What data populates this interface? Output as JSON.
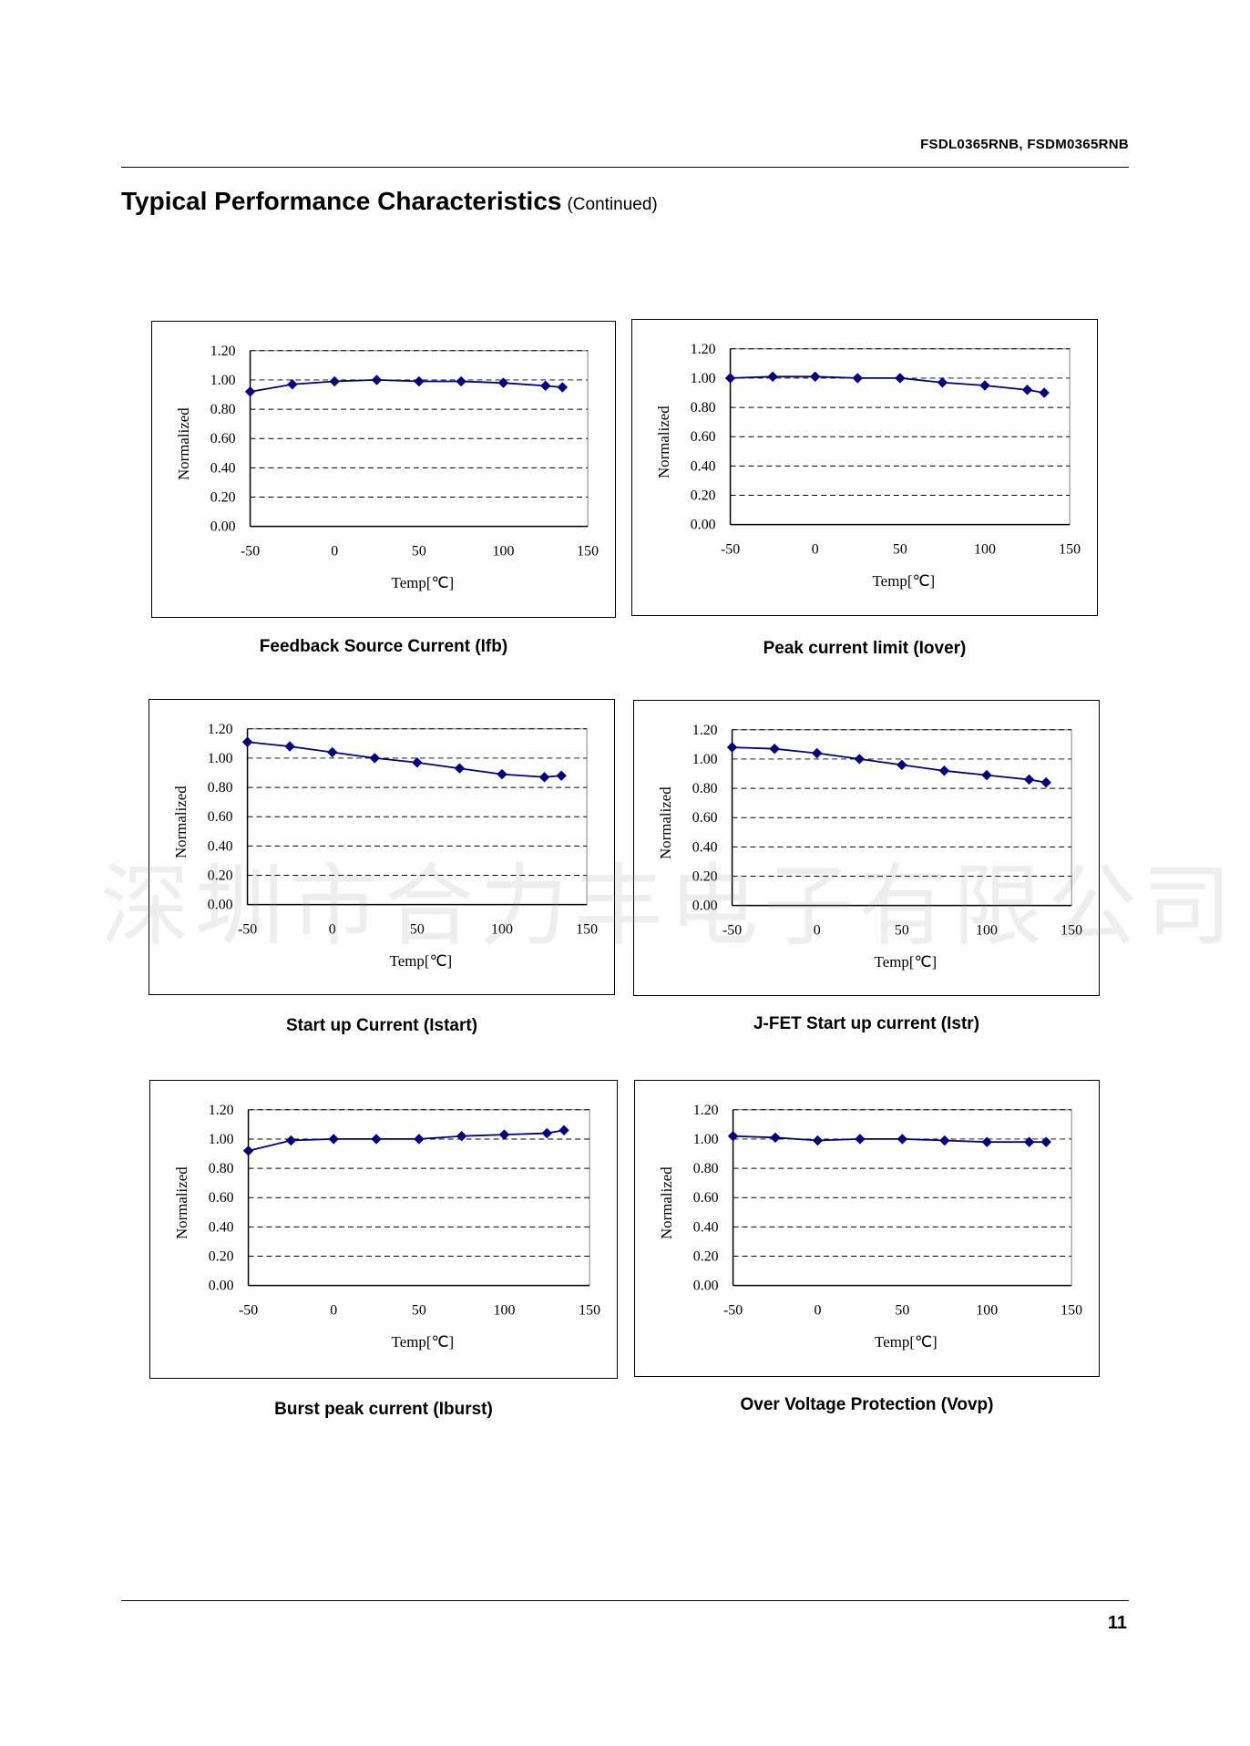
{
  "header": {
    "part_numbers": "FSDL0365RNB, FSDM0365RNB"
  },
  "title": {
    "main": "Typical Performance Characteristics",
    "continued": "(Continued)"
  },
  "footer": {
    "page_number": "11"
  },
  "watermark": "深圳市合力丰电子有限公司",
  "colors": {
    "series": "#000080",
    "grid": "#000000"
  },
  "chart_data": [
    {
      "type": "line",
      "title": "Feedback Source Current (Ifb)",
      "xlabel": "Temp[℃]",
      "ylabel": "Normalized",
      "xlim": [
        -50,
        150
      ],
      "ylim": [
        0,
        1.2
      ],
      "xticks": [
        "-50",
        "0",
        "50",
        "100",
        "150"
      ],
      "yticks": [
        "0.00",
        "0.20",
        "0.40",
        "0.60",
        "0.80",
        "1.00",
        "1.20"
      ],
      "grid": "dashed horizontal",
      "x": [
        -50,
        -25,
        0,
        25,
        50,
        75,
        100,
        125,
        135
      ],
      "y": [
        0.92,
        0.97,
        0.99,
        1.0,
        0.99,
        0.99,
        0.98,
        0.96,
        0.95
      ]
    },
    {
      "type": "line",
      "title": "Peak current limit (Iover)",
      "xlabel": "Temp[℃]",
      "ylabel": "Normalized",
      "xlim": [
        -50,
        150
      ],
      "ylim": [
        0,
        1.2
      ],
      "xticks": [
        "-50",
        "0",
        "50",
        "100",
        "150"
      ],
      "yticks": [
        "0.00",
        "0.20",
        "0.40",
        "0.60",
        "0.80",
        "1.00",
        "1.20"
      ],
      "grid": "dashed horizontal",
      "x": [
        -50,
        -25,
        0,
        25,
        50,
        75,
        100,
        125,
        135
      ],
      "y": [
        1.0,
        1.01,
        1.01,
        1.0,
        1.0,
        0.97,
        0.95,
        0.92,
        0.9
      ]
    },
    {
      "type": "line",
      "title": "Start up Current (Istart)",
      "xlabel": "Temp[℃]",
      "ylabel": "Normalized",
      "xlim": [
        -50,
        150
      ],
      "ylim": [
        0,
        1.2
      ],
      "xticks": [
        "-50",
        "0",
        "50",
        "100",
        "150"
      ],
      "yticks": [
        "0.00",
        "0.20",
        "0.40",
        "0.60",
        "0.80",
        "1.00",
        "1.20"
      ],
      "grid": "dashed horizontal",
      "x": [
        -50,
        -25,
        0,
        25,
        50,
        75,
        100,
        125,
        135
      ],
      "y": [
        1.11,
        1.08,
        1.04,
        1.0,
        0.97,
        0.93,
        0.89,
        0.87,
        0.88
      ]
    },
    {
      "type": "line",
      "title": "J-FET Start up current (Istr)",
      "xlabel": "Temp[℃]",
      "ylabel": "Normalized",
      "xlim": [
        -50,
        150
      ],
      "ylim": [
        0,
        1.2
      ],
      "xticks": [
        "-50",
        "0",
        "50",
        "100",
        "150"
      ],
      "yticks": [
        "0.00",
        "0.20",
        "0.40",
        "0.60",
        "0.80",
        "1.00",
        "1.20"
      ],
      "grid": "dashed horizontal",
      "x": [
        -50,
        -25,
        0,
        25,
        50,
        75,
        100,
        125,
        135
      ],
      "y": [
        1.08,
        1.07,
        1.04,
        1.0,
        0.96,
        0.92,
        0.89,
        0.86,
        0.84
      ]
    },
    {
      "type": "line",
      "title": "Burst peak current (Iburst)",
      "xlabel": "Temp[℃]",
      "ylabel": "Normalized",
      "xlim": [
        -50,
        150
      ],
      "ylim": [
        0,
        1.2
      ],
      "xticks": [
        "-50",
        "0",
        "50",
        "100",
        "150"
      ],
      "yticks": [
        "0.00",
        "0.20",
        "0.40",
        "0.60",
        "0.80",
        "1.00",
        "1.20"
      ],
      "grid": "dashed horizontal",
      "x": [
        -50,
        -25,
        0,
        25,
        50,
        75,
        100,
        125,
        135
      ],
      "y": [
        0.92,
        0.99,
        1.0,
        1.0,
        1.0,
        1.02,
        1.03,
        1.04,
        1.06
      ]
    },
    {
      "type": "line",
      "title": "Over Voltage Protection (Vovp)",
      "xlabel": "Temp[℃]",
      "ylabel": "Normalized",
      "xlim": [
        -50,
        150
      ],
      "ylim": [
        0,
        1.2
      ],
      "xticks": [
        "-50",
        "0",
        "50",
        "100",
        "150"
      ],
      "yticks": [
        "0.00",
        "0.20",
        "0.40",
        "0.60",
        "0.80",
        "1.00",
        "1.20"
      ],
      "grid": "dashed horizontal",
      "x": [
        -50,
        -25,
        0,
        25,
        50,
        75,
        100,
        125,
        135
      ],
      "y": [
        1.02,
        1.01,
        0.99,
        1.0,
        1.0,
        0.99,
        0.98,
        0.98,
        0.98
      ]
    }
  ]
}
